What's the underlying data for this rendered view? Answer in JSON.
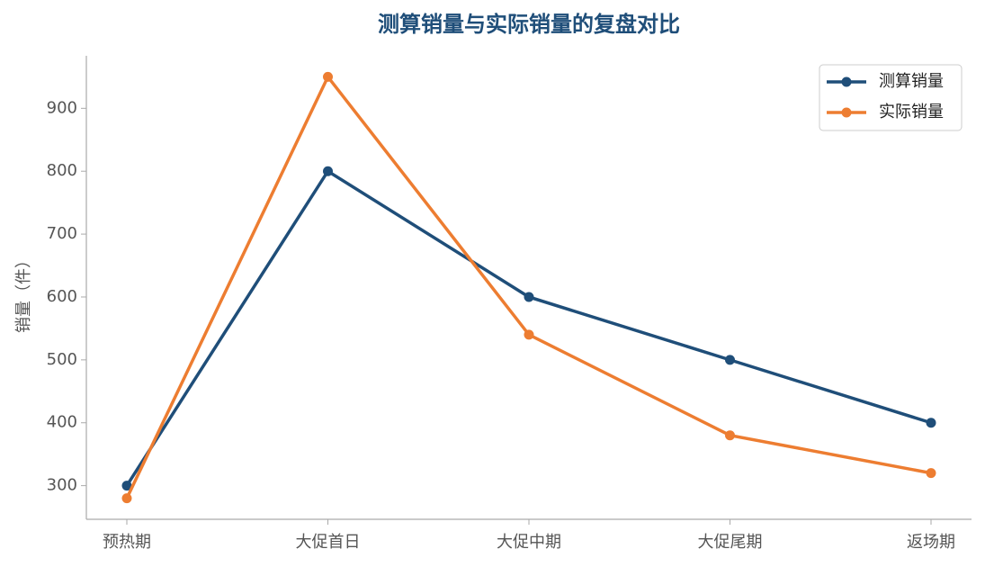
{
  "chart_data": {
    "type": "line",
    "title": "测算销量与实际销量的复盘对比",
    "y_label": "销量（件）",
    "categories": [
      "预热期",
      "大促首日",
      "大促中期",
      "大促尾期",
      "返场期"
    ],
    "series": [
      {
        "name": "测算销量",
        "color": "#1f4e79",
        "values": [
          300,
          800,
          600,
          500,
          400
        ]
      },
      {
        "name": "实际销量",
        "color": "#ed7d31",
        "values": [
          280,
          950,
          540,
          380,
          320
        ]
      }
    ],
    "ylim": [
      246.5,
      983.5
    ],
    "yticks": [
      300,
      400,
      500,
      600,
      700,
      800,
      900
    ],
    "grid": false,
    "legend": "upper-right"
  }
}
